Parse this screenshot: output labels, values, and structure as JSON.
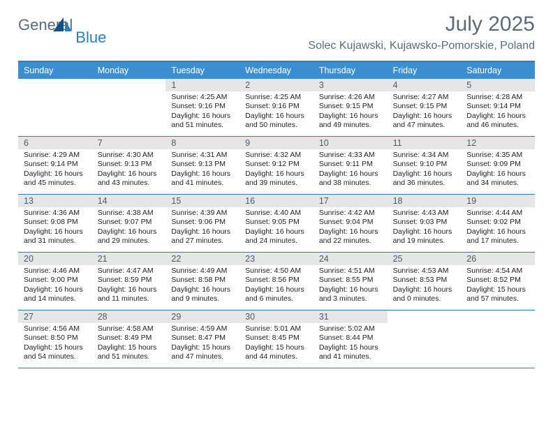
{
  "brand": {
    "general": "General",
    "blue": "Blue"
  },
  "title": "July 2025",
  "location": "Solec Kujawski, Kujawsko-Pomorskie, Poland",
  "colors": {
    "header_bar": "#3b8fd1",
    "border": "#2e7bbf",
    "daynum_bg": "#e6e6e6",
    "text_muted": "#5c6b78",
    "brand_blue": "#2a7fbf"
  },
  "weekdays": [
    "Sunday",
    "Monday",
    "Tuesday",
    "Wednesday",
    "Thursday",
    "Friday",
    "Saturday"
  ],
  "weeks": [
    [
      null,
      null,
      {
        "n": "1",
        "sr": "4:25 AM",
        "ss": "9:16 PM",
        "dl": "16 hours and 51 minutes."
      },
      {
        "n": "2",
        "sr": "4:25 AM",
        "ss": "9:16 PM",
        "dl": "16 hours and 50 minutes."
      },
      {
        "n": "3",
        "sr": "4:26 AM",
        "ss": "9:15 PM",
        "dl": "16 hours and 49 minutes."
      },
      {
        "n": "4",
        "sr": "4:27 AM",
        "ss": "9:15 PM",
        "dl": "16 hours and 47 minutes."
      },
      {
        "n": "5",
        "sr": "4:28 AM",
        "ss": "9:14 PM",
        "dl": "16 hours and 46 minutes."
      }
    ],
    [
      {
        "n": "6",
        "sr": "4:29 AM",
        "ss": "9:14 PM",
        "dl": "16 hours and 45 minutes."
      },
      {
        "n": "7",
        "sr": "4:30 AM",
        "ss": "9:13 PM",
        "dl": "16 hours and 43 minutes."
      },
      {
        "n": "8",
        "sr": "4:31 AM",
        "ss": "9:13 PM",
        "dl": "16 hours and 41 minutes."
      },
      {
        "n": "9",
        "sr": "4:32 AM",
        "ss": "9:12 PM",
        "dl": "16 hours and 39 minutes."
      },
      {
        "n": "10",
        "sr": "4:33 AM",
        "ss": "9:11 PM",
        "dl": "16 hours and 38 minutes."
      },
      {
        "n": "11",
        "sr": "4:34 AM",
        "ss": "9:10 PM",
        "dl": "16 hours and 36 minutes."
      },
      {
        "n": "12",
        "sr": "4:35 AM",
        "ss": "9:09 PM",
        "dl": "16 hours and 34 minutes."
      }
    ],
    [
      {
        "n": "13",
        "sr": "4:36 AM",
        "ss": "9:08 PM",
        "dl": "16 hours and 31 minutes."
      },
      {
        "n": "14",
        "sr": "4:38 AM",
        "ss": "9:07 PM",
        "dl": "16 hours and 29 minutes."
      },
      {
        "n": "15",
        "sr": "4:39 AM",
        "ss": "9:06 PM",
        "dl": "16 hours and 27 minutes."
      },
      {
        "n": "16",
        "sr": "4:40 AM",
        "ss": "9:05 PM",
        "dl": "16 hours and 24 minutes."
      },
      {
        "n": "17",
        "sr": "4:42 AM",
        "ss": "9:04 PM",
        "dl": "16 hours and 22 minutes."
      },
      {
        "n": "18",
        "sr": "4:43 AM",
        "ss": "9:03 PM",
        "dl": "16 hours and 19 minutes."
      },
      {
        "n": "19",
        "sr": "4:44 AM",
        "ss": "9:02 PM",
        "dl": "16 hours and 17 minutes."
      }
    ],
    [
      {
        "n": "20",
        "sr": "4:46 AM",
        "ss": "9:00 PM",
        "dl": "16 hours and 14 minutes."
      },
      {
        "n": "21",
        "sr": "4:47 AM",
        "ss": "8:59 PM",
        "dl": "16 hours and 11 minutes."
      },
      {
        "n": "22",
        "sr": "4:49 AM",
        "ss": "8:58 PM",
        "dl": "16 hours and 9 minutes."
      },
      {
        "n": "23",
        "sr": "4:50 AM",
        "ss": "8:56 PM",
        "dl": "16 hours and 6 minutes."
      },
      {
        "n": "24",
        "sr": "4:51 AM",
        "ss": "8:55 PM",
        "dl": "16 hours and 3 minutes."
      },
      {
        "n": "25",
        "sr": "4:53 AM",
        "ss": "8:53 PM",
        "dl": "16 hours and 0 minutes."
      },
      {
        "n": "26",
        "sr": "4:54 AM",
        "ss": "8:52 PM",
        "dl": "15 hours and 57 minutes."
      }
    ],
    [
      {
        "n": "27",
        "sr": "4:56 AM",
        "ss": "8:50 PM",
        "dl": "15 hours and 54 minutes."
      },
      {
        "n": "28",
        "sr": "4:58 AM",
        "ss": "8:49 PM",
        "dl": "15 hours and 51 minutes."
      },
      {
        "n": "29",
        "sr": "4:59 AM",
        "ss": "8:47 PM",
        "dl": "15 hours and 47 minutes."
      },
      {
        "n": "30",
        "sr": "5:01 AM",
        "ss": "8:45 PM",
        "dl": "15 hours and 44 minutes."
      },
      {
        "n": "31",
        "sr": "5:02 AM",
        "ss": "8:44 PM",
        "dl": "15 hours and 41 minutes."
      },
      null,
      null
    ]
  ],
  "labels": {
    "sunrise": "Sunrise: ",
    "sunset": "Sunset: ",
    "daylight": "Daylight: "
  }
}
